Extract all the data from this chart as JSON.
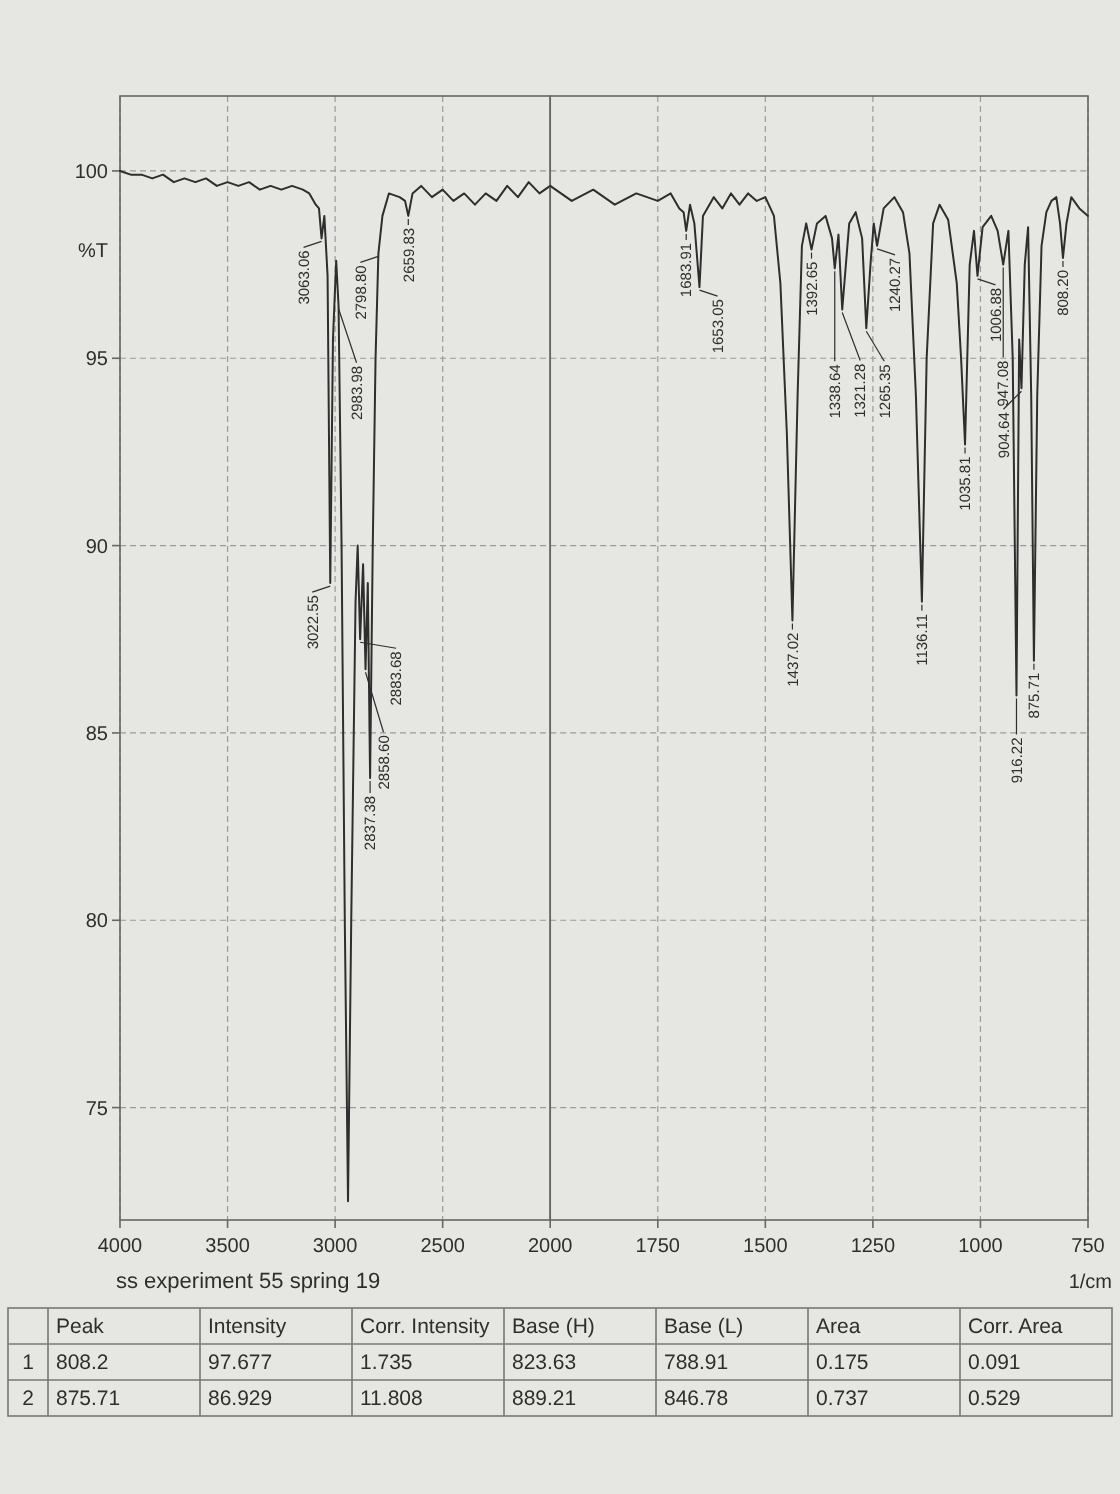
{
  "chart_data": [
    {
      "type": "line",
      "ylabel": "%T",
      "color": "#2e2e2e",
      "grid": true,
      "xlim": [
        4000,
        2000
      ],
      "xticks": [
        4000,
        3500,
        3000,
        2500,
        2000
      ],
      "ylim": [
        72,
        102
      ],
      "yticks": [
        75,
        80,
        85,
        90,
        95,
        100
      ],
      "x": [
        4000,
        3950,
        3900,
        3850,
        3800,
        3750,
        3700,
        3650,
        3600,
        3550,
        3500,
        3450,
        3400,
        3350,
        3300,
        3250,
        3200,
        3150,
        3120,
        3090,
        3075,
        3063.06,
        3050,
        3035,
        3022.55,
        3010,
        2995,
        2983.98,
        2970,
        2955,
        2940,
        2925,
        2905,
        2895,
        2883.68,
        2870,
        2858.6,
        2848,
        2837.38,
        2825,
        2812,
        2798.8,
        2780,
        2750,
        2700,
        2675,
        2659.83,
        2640,
        2600,
        2550,
        2500,
        2450,
        2400,
        2350,
        2300,
        2250,
        2200,
        2150,
        2100,
        2050,
        2000
      ],
      "values": [
        100.0,
        99.9,
        99.9,
        99.8,
        99.9,
        99.7,
        99.8,
        99.7,
        99.8,
        99.6,
        99.7,
        99.6,
        99.7,
        99.5,
        99.6,
        99.5,
        99.6,
        99.5,
        99.4,
        99.1,
        99.0,
        98.2,
        98.8,
        97.2,
        89.0,
        95.5,
        97.6,
        96.4,
        90.0,
        80.0,
        72.5,
        80.0,
        88.5,
        90.0,
        87.5,
        89.5,
        86.7,
        89.0,
        83.8,
        90.0,
        95.0,
        97.8,
        98.8,
        99.4,
        99.3,
        99.2,
        98.8,
        99.4,
        99.6,
        99.3,
        99.5,
        99.2,
        99.4,
        99.1,
        99.4,
        99.2,
        99.6,
        99.3,
        99.7,
        99.4,
        99.6
      ],
      "annotations": [
        {
          "text": "3063.06",
          "x": 3063.06,
          "y": 98.2
        },
        {
          "text": "3022.55",
          "x": 3022.55,
          "y": 89.0
        },
        {
          "text": "2983.98",
          "x": 2983.98,
          "y": 96.4
        },
        {
          "text": "2883.68",
          "x": 2883.68,
          "y": 87.5
        },
        {
          "text": "2858.60",
          "x": 2858.6,
          "y": 86.7
        },
        {
          "text": "2837.38",
          "x": 2837.38,
          "y": 83.8
        },
        {
          "text": "2798.80",
          "x": 2798.8,
          "y": 97.8
        },
        {
          "text": "2659.83",
          "x": 2659.83,
          "y": 98.8
        },
        "ss experiment 55 spring 19"
      ]
    },
    {
      "type": "line",
      "xlabel": "1/cm",
      "color": "#2e2e2e",
      "grid": true,
      "tick_labels": "x",
      "xlim": [
        2000,
        750
      ],
      "xticks": [
        1750,
        1500,
        1250,
        1000,
        750
      ],
      "ylim": [
        72,
        102
      ],
      "yticks": [
        75,
        80,
        85,
        90,
        95,
        100
      ],
      "x": [
        2000,
        1950,
        1900,
        1850,
        1800,
        1750,
        1720,
        1700,
        1690,
        1683.91,
        1675,
        1665,
        1653.05,
        1645,
        1620,
        1600,
        1580,
        1560,
        1540,
        1520,
        1500,
        1480,
        1465,
        1450,
        1437.02,
        1425,
        1415,
        1405,
        1392.65,
        1380,
        1360,
        1345,
        1338.64,
        1330,
        1321.28,
        1305,
        1290,
        1275,
        1265.35,
        1255,
        1248,
        1240.27,
        1225,
        1200,
        1180,
        1165,
        1150,
        1136.11,
        1125,
        1110,
        1095,
        1075,
        1055,
        1045,
        1035.81,
        1025,
        1015,
        1006.88,
        995,
        975,
        960,
        947.08,
        935,
        925,
        916.22,
        910,
        904.64,
        897,
        889.21,
        882,
        875.71,
        868,
        858,
        846.78,
        835,
        823.63,
        815,
        808.2,
        800,
        788.91,
        770,
        750
      ],
      "values": [
        99.6,
        99.2,
        99.5,
        99.1,
        99.4,
        99.2,
        99.4,
        99.0,
        98.9,
        98.4,
        99.1,
        98.6,
        96.9,
        98.8,
        99.3,
        99.0,
        99.4,
        99.1,
        99.4,
        99.2,
        99.3,
        98.8,
        97.0,
        93.0,
        88.0,
        94.0,
        98.0,
        98.6,
        97.9,
        98.6,
        98.8,
        98.2,
        97.4,
        98.3,
        96.3,
        98.6,
        98.9,
        98.2,
        95.8,
        97.6,
        98.6,
        98.0,
        99.0,
        99.3,
        98.9,
        97.8,
        94.0,
        88.5,
        95.0,
        98.6,
        99.1,
        98.7,
        97.0,
        95.0,
        92.7,
        97.5,
        98.4,
        97.2,
        98.5,
        98.8,
        98.4,
        97.5,
        98.4,
        95.0,
        86.0,
        95.5,
        94.2,
        97.5,
        98.5,
        94.0,
        86.929,
        94.0,
        98.0,
        98.9,
        99.2,
        99.3,
        98.6,
        97.677,
        98.6,
        99.3,
        99.0,
        98.8
      ],
      "annotations": [
        {
          "text": "1683.91",
          "x": 1683.91,
          "y": 98.4
        },
        {
          "text": "1653.05",
          "x": 1653.05,
          "y": 96.9
        },
        {
          "text": "1437.02",
          "x": 1437.02,
          "y": 88.0
        },
        {
          "text": "1392.65",
          "x": 1392.65,
          "y": 97.9
        },
        {
          "text": "1338.64",
          "x": 1338.64,
          "y": 97.4
        },
        {
          "text": "1321.28",
          "x": 1321.28,
          "y": 96.3
        },
        {
          "text": "1265.35",
          "x": 1265.35,
          "y": 95.8
        },
        {
          "text": "1240.27",
          "x": 1240.27,
          "y": 98.0
        },
        {
          "text": "1136.11",
          "x": 1136.11,
          "y": 88.5
        },
        {
          "text": "1035.81",
          "x": 1035.81,
          "y": 92.7
        },
        {
          "text": "1006.88",
          "x": 1006.88,
          "y": 97.2
        },
        {
          "text": "947.08",
          "x": 947.08,
          "y": 97.5
        },
        {
          "text": "916.22",
          "x": 916.22,
          "y": 86.0
        },
        {
          "text": "904.64",
          "x": 904.64,
          "y": 94.2
        },
        {
          "text": "875.71",
          "x": 875.71,
          "y": 86.929
        },
        {
          "text": "808.20",
          "x": 808.2,
          "y": 97.677
        }
      ]
    },
    {
      "type": "other",
      "categories": [
        "Peak",
        "Intensity",
        "Corr. Intensity",
        "Base (H)",
        "Base (L)",
        "Area",
        "Corr. Area"
      ],
      "y_categories": [
        "1",
        "2"
      ],
      "cell_labels": [
        [
          "808.2",
          "97.677",
          "1.735",
          "823.63",
          "788.91",
          "0.175",
          "0.091"
        ],
        [
          "875.71",
          "86.929",
          "11.808",
          "889.21",
          "846.78",
          "0.737",
          "0.529"
        ]
      ]
    }
  ]
}
